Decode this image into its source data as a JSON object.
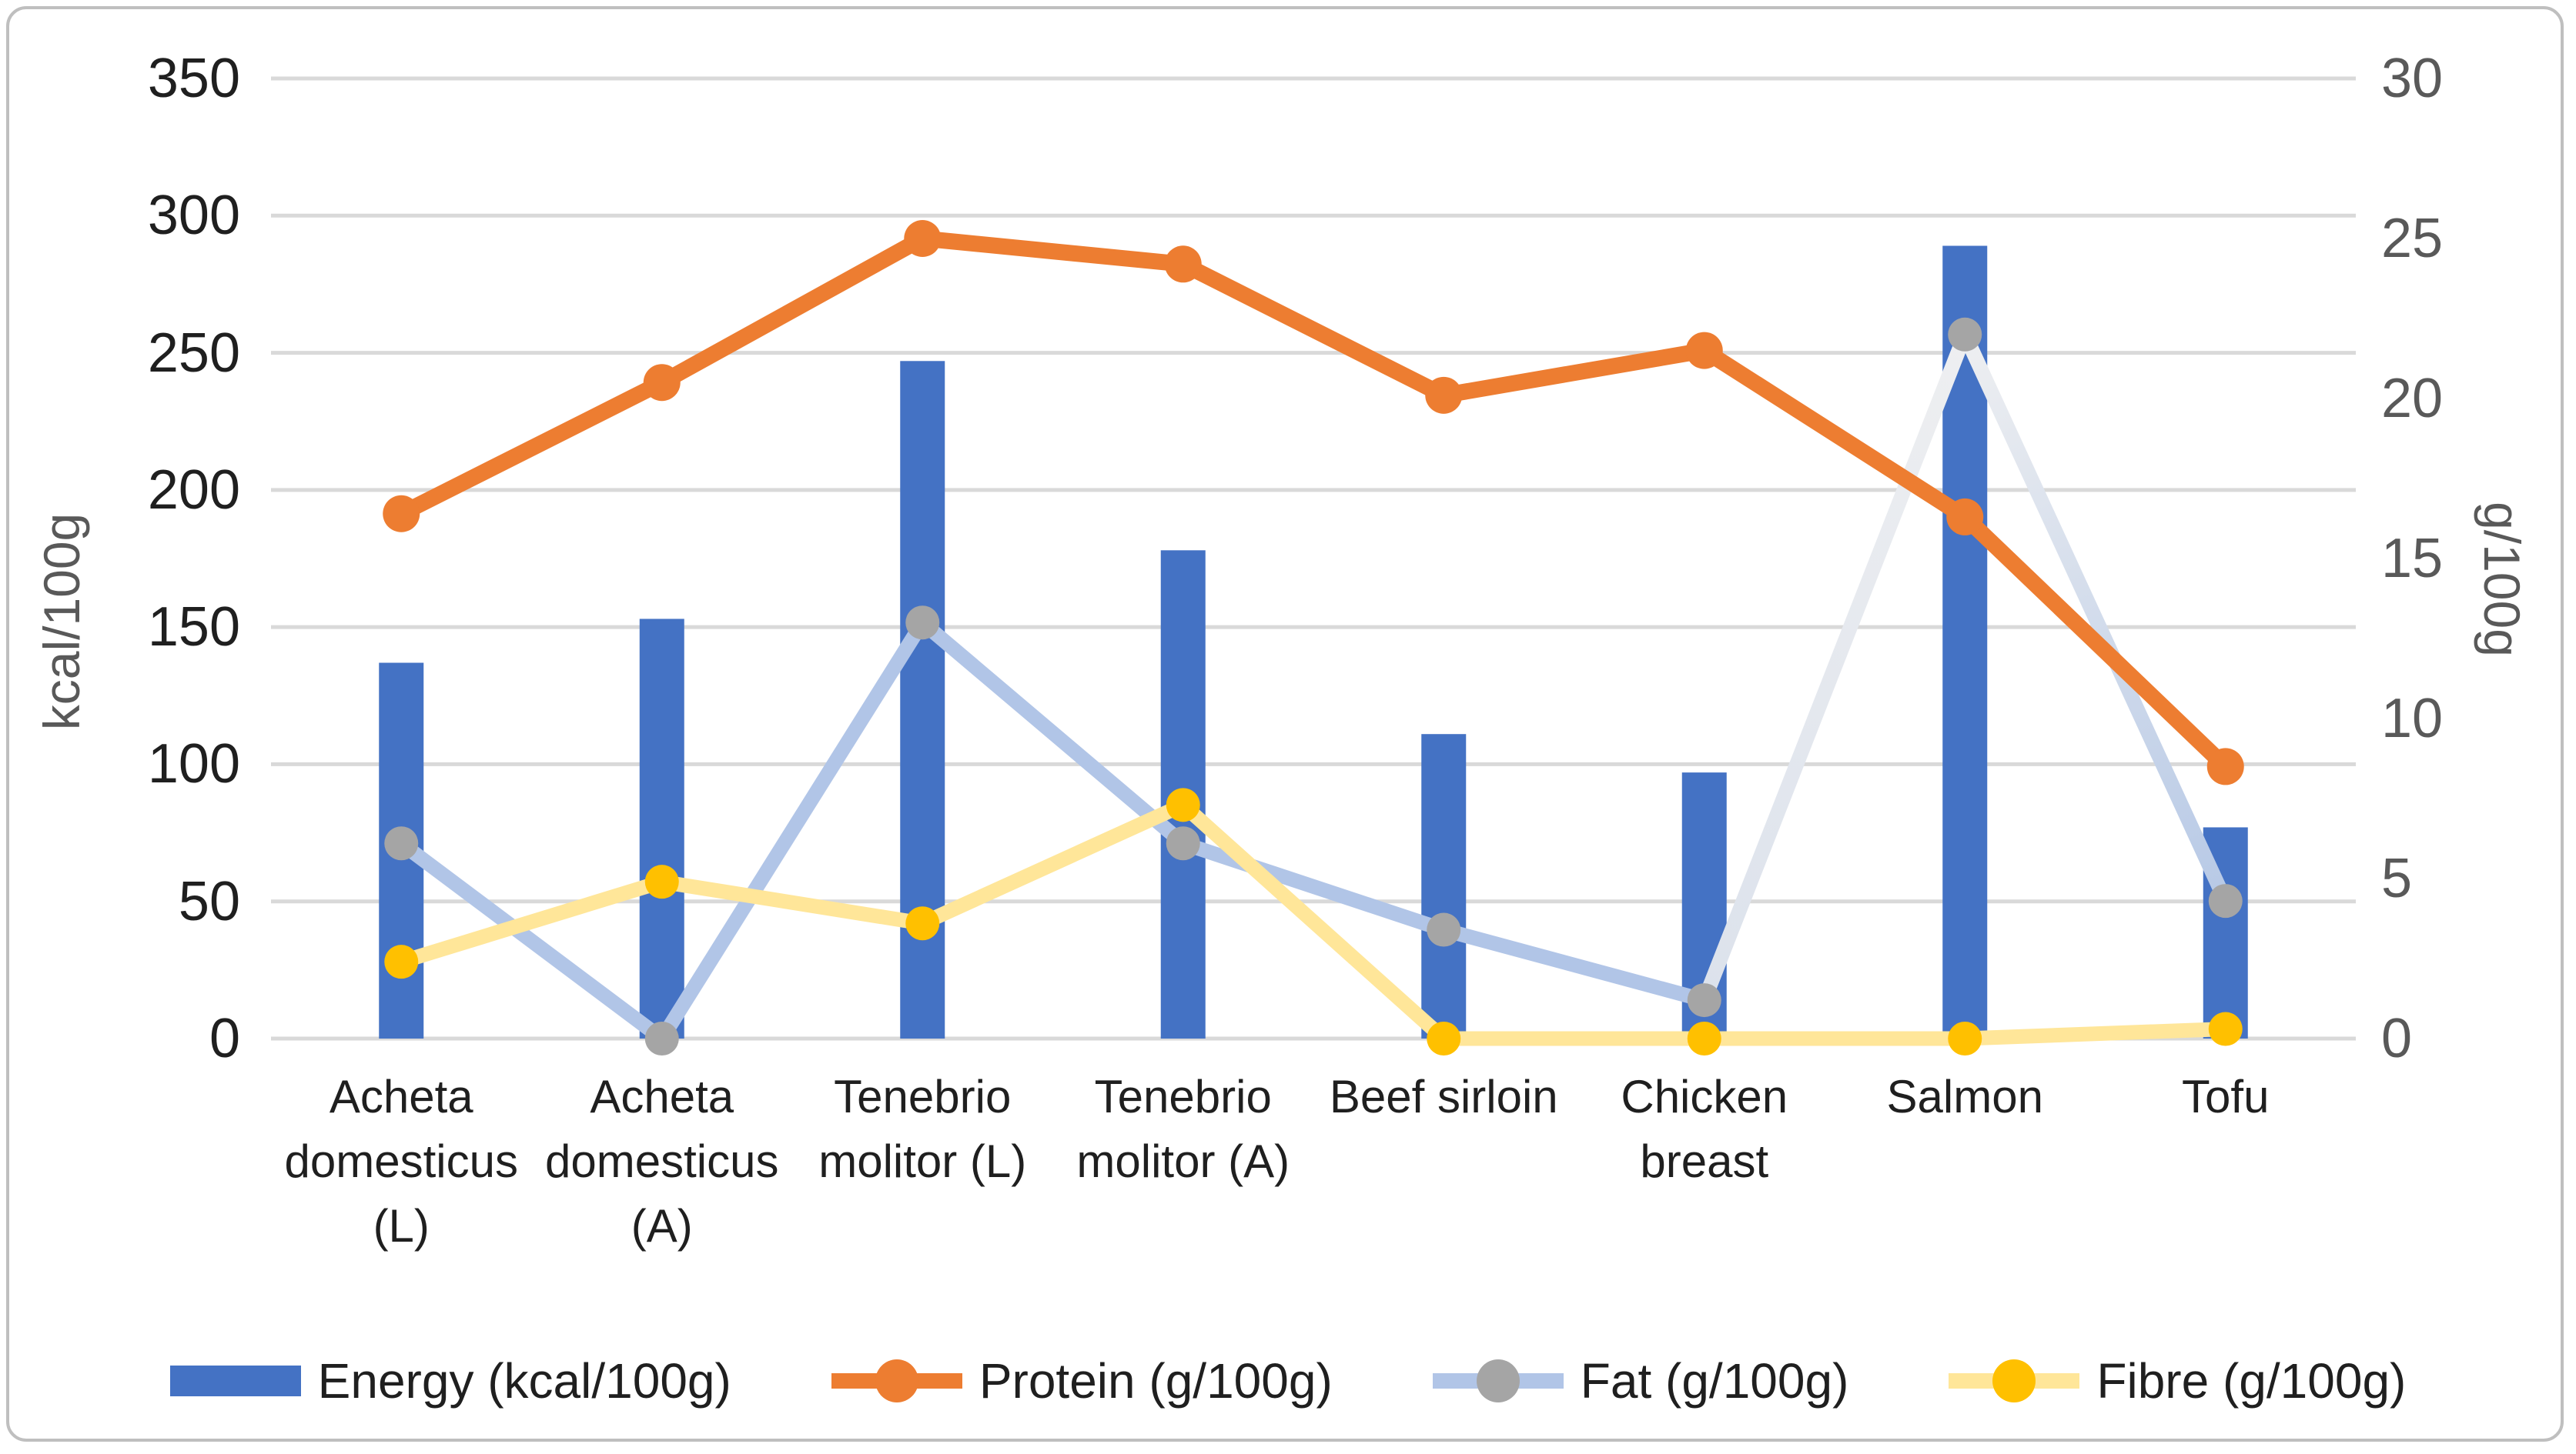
{
  "chart_data": {
    "type": "bar+line combo",
    "title": "",
    "categories": [
      "Acheta domesticus (L)",
      "Acheta domesticus (A)",
      "Tenebrio molitor (L)",
      "Tenebrio molitor (A)",
      "Beef sirloin",
      "Chicken breast",
      "Salmon",
      "Tofu"
    ],
    "series": [
      {
        "name": "Energy (kcal/100g)",
        "type": "bar",
        "axis": "left",
        "color": "#4472C4",
        "values": [
          137,
          153,
          247,
          178,
          111,
          97,
          289,
          77
        ]
      },
      {
        "name": "Protein (g/100g)",
        "type": "line",
        "axis": "right",
        "line_color": "#ED7D31",
        "marker_color": "#ED7D31",
        "values": [
          16.4,
          20.5,
          25.0,
          24.2,
          20.1,
          21.5,
          16.3,
          8.5
        ]
      },
      {
        "name": "Fat (g/100g)",
        "type": "line",
        "axis": "right",
        "line_color": "#B1C5E7",
        "marker_color": "#A5A5A5",
        "values": [
          6.1,
          0,
          13.0,
          6.1,
          3.4,
          1.2,
          22.0,
          4.3
        ],
        "segment_colors": [
          "#B1C5E7",
          "#B1C5E7",
          "#B1C5E7",
          "#B1C5E7",
          "#B1C5E7",
          {
            "from": "#DCE2EC",
            "to": "#EEEFF1"
          },
          {
            "from": "#EEEFF1",
            "to": "#B7C9E6"
          }
        ]
      },
      {
        "name": "Fibre (g/100g)",
        "type": "line",
        "axis": "right",
        "line_color": "#FFE699",
        "marker_color": "#FFC000",
        "values": [
          2.4,
          4.9,
          3.6,
          7.3,
          0,
          0,
          0,
          0.3
        ]
      }
    ],
    "left_axis": {
      "title": "kcal/100g",
      "min": 0,
      "max": 350,
      "step": 50,
      "tick_labels": [
        "350",
        "300",
        "250",
        "200",
        "150",
        "100",
        "50",
        "0"
      ]
    },
    "right_axis": {
      "title": "g/100g",
      "min": 0,
      "max": 30,
      "step": 5,
      "tick_labels": [
        "30",
        "25",
        "20",
        "15",
        "10",
        "5",
        "0"
      ]
    },
    "grid": true,
    "legend_position": "bottom",
    "gridline_color": "#D9D9D9",
    "border_color": "#BFBFBF"
  }
}
